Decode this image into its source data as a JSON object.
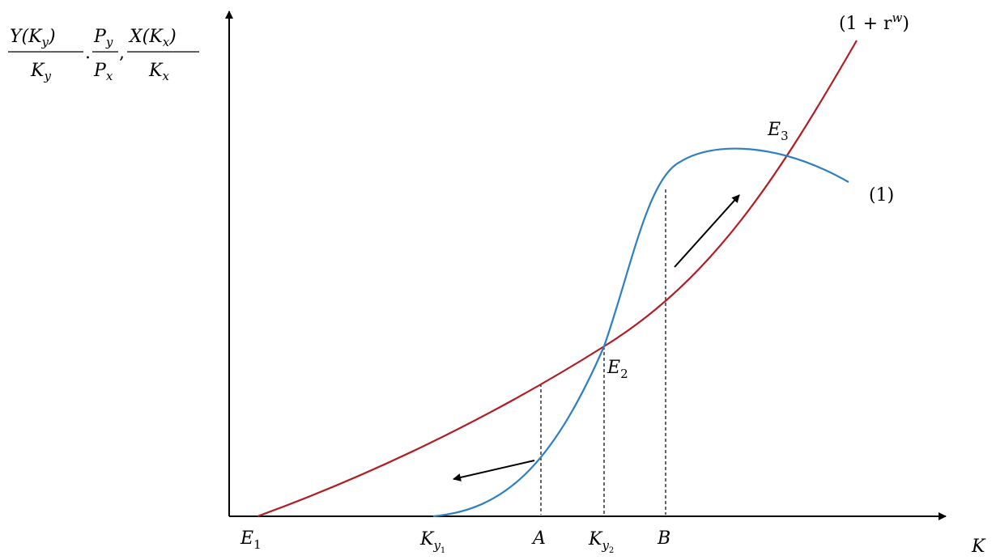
{
  "diagram": {
    "y_axis_label": {
      "term1_num": "Y(K",
      "term1_num_sub": "y",
      "term1_num_close": ")",
      "term1_den": "K",
      "term1_den_sub": "y",
      "dot": ".",
      "term2_num": "P",
      "term2_num_sub": "y",
      "term2_den": "P",
      "term2_den_sub": "x",
      "comma": ",",
      "term3_num": "X(K",
      "term3_num_sub": "x",
      "term3_num_close": ")",
      "term3_den": "K",
      "term3_den_sub": "x"
    },
    "x_axis_label": "K",
    "curve_red_label": "(1 + r",
    "curve_red_label_sup": "w",
    "curve_red_label_close": ")",
    "curve_blue_label": "(1)",
    "points": {
      "e1": {
        "main": "E",
        "sub": "1"
      },
      "e2": {
        "main": "E",
        "sub": "2"
      },
      "e3": {
        "main": "E",
        "sub": "3"
      },
      "ky1": {
        "main": "K",
        "sub": "y",
        "subsub": "1"
      },
      "ky2": {
        "main": "K",
        "sub": "y",
        "subsub": "2"
      },
      "a": "A",
      "b": "B"
    },
    "colors": {
      "red_curve": "#b01d23",
      "blue_curve": "#2e7fc1",
      "axis": "#000000"
    }
  }
}
